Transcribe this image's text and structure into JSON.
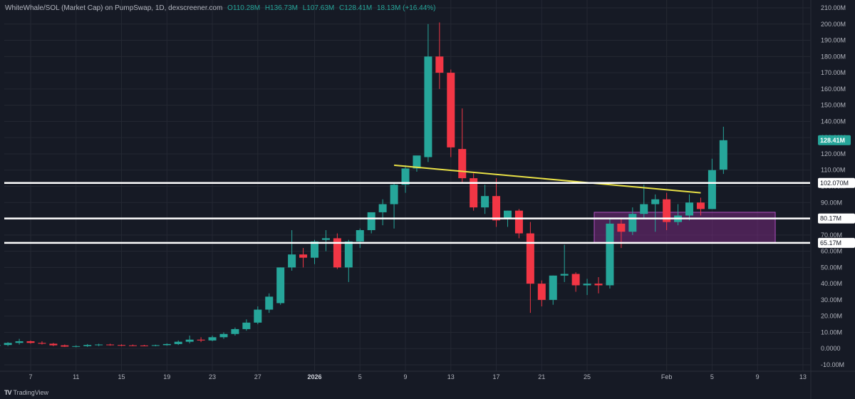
{
  "header": {
    "symbol": "WhiteWhale/SOL (Market Cap) on PumpSwap, 1D, dexscreener.com",
    "open": "O110.28M",
    "high": "H136.73M",
    "low": "L107.63M",
    "close": "C128.41M",
    "change": "18.13M (+16.44%)"
  },
  "branding": {
    "name": "TradingView"
  },
  "colors": {
    "background": "#161a25",
    "up": "#26a69a",
    "down": "#f23645",
    "grid": "#242833",
    "axis_text": "#b2b5be",
    "level_line": "#ffffff",
    "trendline": "#e8e046",
    "zone_fill": "#8a2c8f",
    "zone_border": "#b04fc0"
  },
  "chart_data": {
    "type": "candlestick",
    "y_unit": "M",
    "y_ticks": [
      -10,
      0,
      10,
      20,
      30,
      40,
      50,
      60,
      70,
      80,
      90,
      100,
      110,
      120,
      130,
      140,
      150,
      160,
      170,
      180,
      190,
      200,
      210
    ],
    "y_tick_labels": [
      "-10.00M",
      "0.0000",
      "10.00M",
      "20.00M",
      "30.00M",
      "40.00M",
      "50.00M",
      "60.00M",
      "70.00M",
      "80.00M",
      "90.00M",
      "100.00M",
      "110.00M",
      "120.00M",
      "130.00M",
      "140.00M",
      "150.00M",
      "160.00M",
      "170.00M",
      "180.00M",
      "190.00M",
      "200.00M",
      "210.00M"
    ],
    "y_range": [
      -12,
      211
    ],
    "x_ticks": [
      {
        "label": "7",
        "date": "2025-12-07"
      },
      {
        "label": "11",
        "date": "2025-12-11"
      },
      {
        "label": "15",
        "date": "2025-12-15"
      },
      {
        "label": "19",
        "date": "2025-12-19"
      },
      {
        "label": "23",
        "date": "2025-12-23"
      },
      {
        "label": "27",
        "date": "2025-12-27"
      },
      {
        "label": "2026",
        "date": "2026-01-01",
        "bold": true
      },
      {
        "label": "5",
        "date": "2026-01-05"
      },
      {
        "label": "9",
        "date": "2026-01-09"
      },
      {
        "label": "13",
        "date": "2026-01-13"
      },
      {
        "label": "17",
        "date": "2026-01-17"
      },
      {
        "label": "21",
        "date": "2026-01-21"
      },
      {
        "label": "25",
        "date": "2026-01-25"
      },
      {
        "label": "Feb",
        "date": "2026-02-01"
      },
      {
        "label": "5",
        "date": "2026-02-05"
      },
      {
        "label": "9",
        "date": "2026-02-09"
      },
      {
        "label": "13",
        "date": "2026-02-13"
      }
    ],
    "x_range": [
      "2025-12-04",
      "2026-02-15"
    ],
    "candles": [
      {
        "d": "2025-12-04",
        "o": 2,
        "h": 3,
        "l": 1,
        "c": 2.2
      },
      {
        "d": "2025-12-05",
        "o": 2.2,
        "h": 4,
        "l": 1.5,
        "c": 3.5
      },
      {
        "d": "2025-12-06",
        "o": 3.5,
        "h": 6,
        "l": 2.5,
        "c": 4.5
      },
      {
        "d": "2025-12-07",
        "o": 4.5,
        "h": 5,
        "l": 3,
        "c": 3.5
      },
      {
        "d": "2025-12-08",
        "o": 3.5,
        "h": 4.5,
        "l": 2.5,
        "c": 3
      },
      {
        "d": "2025-12-09",
        "o": 3,
        "h": 3.5,
        "l": 1.5,
        "c": 2
      },
      {
        "d": "2025-12-10",
        "o": 2,
        "h": 2.5,
        "l": 1,
        "c": 1.2
      },
      {
        "d": "2025-12-11",
        "o": 1.2,
        "h": 2,
        "l": 0.8,
        "c": 1.5
      },
      {
        "d": "2025-12-12",
        "o": 1.5,
        "h": 2.8,
        "l": 1,
        "c": 2.2
      },
      {
        "d": "2025-12-13",
        "o": 2.2,
        "h": 3,
        "l": 1.5,
        "c": 2.5
      },
      {
        "d": "2025-12-14",
        "o": 2.5,
        "h": 3,
        "l": 1.8,
        "c": 2.2
      },
      {
        "d": "2025-12-15",
        "o": 2.2,
        "h": 2.6,
        "l": 1.5,
        "c": 2
      },
      {
        "d": "2025-12-16",
        "o": 2,
        "h": 2.5,
        "l": 1.5,
        "c": 1.9
      },
      {
        "d": "2025-12-17",
        "o": 1.9,
        "h": 2.3,
        "l": 1.4,
        "c": 1.8
      },
      {
        "d": "2025-12-18",
        "o": 1.8,
        "h": 2.4,
        "l": 1.4,
        "c": 2.1
      },
      {
        "d": "2025-12-19",
        "o": 2.1,
        "h": 3.2,
        "l": 1.8,
        "c": 2.8
      },
      {
        "d": "2025-12-20",
        "o": 2.8,
        "h": 5,
        "l": 2.2,
        "c": 4.2
      },
      {
        "d": "2025-12-21",
        "o": 4.2,
        "h": 8,
        "l": 3.2,
        "c": 5.5
      },
      {
        "d": "2025-12-22",
        "o": 5.5,
        "h": 7,
        "l": 4,
        "c": 5
      },
      {
        "d": "2025-12-23",
        "o": 5,
        "h": 8,
        "l": 4.5,
        "c": 7
      },
      {
        "d": "2025-12-24",
        "o": 7,
        "h": 10,
        "l": 6,
        "c": 9
      },
      {
        "d": "2025-12-25",
        "o": 9,
        "h": 13,
        "l": 8,
        "c": 12
      },
      {
        "d": "2025-12-26",
        "o": 12,
        "h": 18,
        "l": 11,
        "c": 16
      },
      {
        "d": "2025-12-27",
        "o": 16,
        "h": 26,
        "l": 15,
        "c": 24
      },
      {
        "d": "2025-12-28",
        "o": 24,
        "h": 34,
        "l": 22,
        "c": 32
      },
      {
        "d": "2025-12-29",
        "o": 28,
        "h": 50,
        "l": 27,
        "c": 50
      },
      {
        "d": "2025-12-30",
        "o": 50,
        "h": 73,
        "l": 48,
        "c": 58
      },
      {
        "d": "2025-12-31",
        "o": 58,
        "h": 62,
        "l": 50,
        "c": 56
      },
      {
        "d": "2026-01-01",
        "o": 56,
        "h": 67,
        "l": 52,
        "c": 66
      },
      {
        "d": "2026-01-02",
        "o": 67,
        "h": 73,
        "l": 60,
        "c": 68
      },
      {
        "d": "2026-01-03",
        "o": 68,
        "h": 71,
        "l": 49,
        "c": 50
      },
      {
        "d": "2026-01-04",
        "o": 50,
        "h": 67,
        "l": 41,
        "c": 66
      },
      {
        "d": "2026-01-05",
        "o": 66,
        "h": 74,
        "l": 62,
        "c": 73
      },
      {
        "d": "2026-01-06",
        "o": 73,
        "h": 84,
        "l": 71,
        "c": 84
      },
      {
        "d": "2026-01-07",
        "o": 84,
        "h": 92,
        "l": 76,
        "c": 89
      },
      {
        "d": "2026-01-08",
        "o": 89,
        "h": 102,
        "l": 74,
        "c": 101
      },
      {
        "d": "2026-01-09",
        "o": 101,
        "h": 113,
        "l": 96,
        "c": 111
      },
      {
        "d": "2026-01-10",
        "o": 111,
        "h": 118,
        "l": 109,
        "c": 119
      },
      {
        "d": "2026-01-11",
        "o": 118,
        "h": 200,
        "l": 115,
        "c": 180
      },
      {
        "d": "2026-01-12",
        "o": 180,
        "h": 201,
        "l": 160,
        "c": 170
      },
      {
        "d": "2026-01-13",
        "o": 170,
        "h": 172,
        "l": 118,
        "c": 124
      },
      {
        "d": "2026-01-14",
        "o": 123,
        "h": 148,
        "l": 102,
        "c": 105
      },
      {
        "d": "2026-01-15",
        "o": 105,
        "h": 108,
        "l": 85,
        "c": 87
      },
      {
        "d": "2026-01-16",
        "o": 87,
        "h": 101,
        "l": 83,
        "c": 94
      },
      {
        "d": "2026-01-17",
        "o": 94,
        "h": 105,
        "l": 75,
        "c": 79
      },
      {
        "d": "2026-01-18",
        "o": 80,
        "h": 85,
        "l": 75,
        "c": 85
      },
      {
        "d": "2026-01-19",
        "o": 85,
        "h": 86,
        "l": 68,
        "c": 71
      },
      {
        "d": "2026-01-20",
        "o": 71,
        "h": 78,
        "l": 22,
        "c": 40
      },
      {
        "d": "2026-01-21",
        "o": 40,
        "h": 42,
        "l": 26,
        "c": 30
      },
      {
        "d": "2026-01-22",
        "o": 30,
        "h": 45,
        "l": 27,
        "c": 45
      },
      {
        "d": "2026-01-23",
        "o": 45,
        "h": 64,
        "l": 41,
        "c": 46
      },
      {
        "d": "2026-01-24",
        "o": 46,
        "h": 47,
        "l": 35,
        "c": 39
      },
      {
        "d": "2026-01-25",
        "o": 39,
        "h": 43,
        "l": 33,
        "c": 40
      },
      {
        "d": "2026-01-26",
        "o": 40,
        "h": 44,
        "l": 34,
        "c": 39
      },
      {
        "d": "2026-01-27",
        "o": 39,
        "h": 80,
        "l": 37,
        "c": 77
      },
      {
        "d": "2026-01-28",
        "o": 77,
        "h": 80,
        "l": 62,
        "c": 72
      },
      {
        "d": "2026-01-29",
        "o": 72,
        "h": 87,
        "l": 70,
        "c": 83
      },
      {
        "d": "2026-01-30",
        "o": 83,
        "h": 101,
        "l": 80,
        "c": 89
      },
      {
        "d": "2026-01-31",
        "o": 89,
        "h": 95,
        "l": 72,
        "c": 92
      },
      {
        "d": "2026-02-01",
        "o": 92,
        "h": 96,
        "l": 73,
        "c": 78
      },
      {
        "d": "2026-02-02",
        "o": 78,
        "h": 89,
        "l": 76,
        "c": 82
      },
      {
        "d": "2026-02-03",
        "o": 82,
        "h": 95,
        "l": 79,
        "c": 90
      },
      {
        "d": "2026-02-04",
        "o": 90,
        "h": 93,
        "l": 82,
        "c": 86
      },
      {
        "d": "2026-02-05",
        "o": 86,
        "h": 117,
        "l": 86,
        "c": 110
      },
      {
        "d": "2026-02-06",
        "o": 110.28,
        "h": 136.73,
        "l": 107.63,
        "c": 128.41
      }
    ],
    "horizontal_levels": [
      {
        "value": 102.07,
        "label": "102.070M"
      },
      {
        "value": 80.17,
        "label": "80.17M"
      },
      {
        "value": 65.17,
        "label": "65.17M"
      }
    ],
    "trendline": {
      "start": {
        "d": "2026-01-08",
        "v": 113
      },
      "end": {
        "d": "2026-02-04",
        "v": 96
      }
    },
    "zone": {
      "d_start": "2026-01-26",
      "d_end": "2026-02-11",
      "low": 65,
      "high": 84
    },
    "last_price": {
      "value": 128.41,
      "label": "128.41M"
    }
  }
}
